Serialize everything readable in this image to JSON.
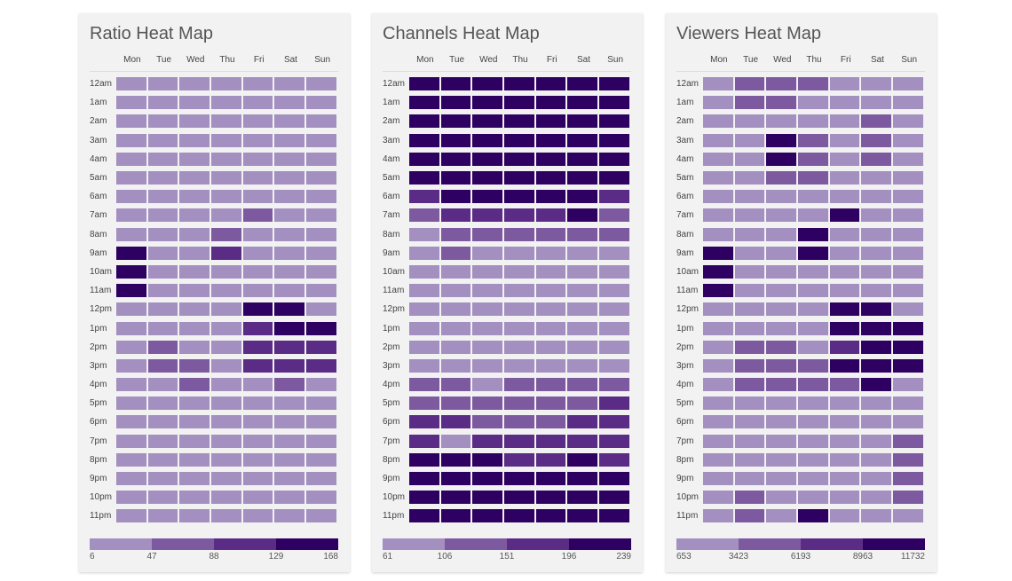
{
  "days": [
    "Mon",
    "Tue",
    "Wed",
    "Thu",
    "Fri",
    "Sat",
    "Sun"
  ],
  "hours": [
    "12am",
    "1am",
    "2am",
    "3am",
    "4am",
    "5am",
    "6am",
    "7am",
    "8am",
    "9am",
    "10am",
    "11am",
    "12pm",
    "1pm",
    "2pm",
    "3pm",
    "4pm",
    "5pm",
    "6pm",
    "7pm",
    "8pm",
    "9pm",
    "10pm",
    "11pm"
  ],
  "colors": [
    "#a38fc0",
    "#7d5a9f",
    "#5a2c86",
    "#2e0062"
  ],
  "chart_data": [
    {
      "type": "heatmap",
      "title": "Ratio Heat Map",
      "scale": [
        "6",
        "47",
        "88",
        "129",
        "168"
      ],
      "levels": [
        [
          0,
          0,
          0,
          0,
          0,
          0,
          0
        ],
        [
          0,
          0,
          0,
          0,
          0,
          0,
          0
        ],
        [
          0,
          0,
          0,
          0,
          0,
          0,
          0
        ],
        [
          0,
          0,
          0,
          0,
          0,
          0,
          0
        ],
        [
          0,
          0,
          0,
          0,
          0,
          0,
          0
        ],
        [
          0,
          0,
          0,
          0,
          0,
          0,
          0
        ],
        [
          0,
          0,
          0,
          0,
          0,
          0,
          0
        ],
        [
          0,
          0,
          0,
          0,
          1,
          0,
          0
        ],
        [
          0,
          0,
          0,
          1,
          0,
          0,
          0
        ],
        [
          3,
          0,
          0,
          2,
          0,
          0,
          0
        ],
        [
          3,
          0,
          0,
          0,
          0,
          0,
          0
        ],
        [
          3,
          0,
          0,
          0,
          0,
          0,
          0
        ],
        [
          0,
          0,
          0,
          0,
          3,
          3,
          0
        ],
        [
          0,
          0,
          0,
          0,
          2,
          3,
          3
        ],
        [
          0,
          1,
          0,
          0,
          2,
          2,
          2
        ],
        [
          0,
          1,
          1,
          0,
          2,
          2,
          2
        ],
        [
          0,
          0,
          1,
          0,
          0,
          1,
          0
        ],
        [
          0,
          0,
          0,
          0,
          0,
          0,
          0
        ],
        [
          0,
          0,
          0,
          0,
          0,
          0,
          0
        ],
        [
          0,
          0,
          0,
          0,
          0,
          0,
          0
        ],
        [
          0,
          0,
          0,
          0,
          0,
          0,
          0
        ],
        [
          0,
          0,
          0,
          0,
          0,
          0,
          0
        ],
        [
          0,
          0,
          0,
          0,
          0,
          0,
          0
        ],
        [
          0,
          0,
          0,
          0,
          0,
          0,
          0
        ]
      ]
    },
    {
      "type": "heatmap",
      "title": "Channels Heat Map",
      "scale": [
        "61",
        "106",
        "151",
        "196",
        "239"
      ],
      "levels": [
        [
          3,
          3,
          3,
          3,
          3,
          3,
          3
        ],
        [
          3,
          3,
          3,
          3,
          3,
          3,
          3
        ],
        [
          3,
          3,
          3,
          3,
          3,
          3,
          3
        ],
        [
          3,
          3,
          3,
          3,
          3,
          3,
          3
        ],
        [
          3,
          3,
          3,
          3,
          3,
          3,
          3
        ],
        [
          3,
          3,
          3,
          3,
          3,
          3,
          3
        ],
        [
          2,
          3,
          3,
          3,
          3,
          3,
          2
        ],
        [
          1,
          2,
          2,
          2,
          2,
          3,
          1
        ],
        [
          0,
          1,
          1,
          1,
          1,
          1,
          1
        ],
        [
          0,
          1,
          0,
          0,
          0,
          0,
          0
        ],
        [
          0,
          0,
          0,
          0,
          0,
          0,
          0
        ],
        [
          0,
          0,
          0,
          0,
          0,
          0,
          0
        ],
        [
          0,
          0,
          0,
          0,
          0,
          0,
          0
        ],
        [
          0,
          0,
          0,
          0,
          0,
          0,
          0
        ],
        [
          0,
          0,
          0,
          0,
          0,
          0,
          0
        ],
        [
          0,
          0,
          0,
          0,
          0,
          0,
          0
        ],
        [
          1,
          1,
          0,
          1,
          1,
          1,
          1
        ],
        [
          1,
          1,
          1,
          1,
          1,
          1,
          2
        ],
        [
          2,
          2,
          1,
          1,
          1,
          2,
          2
        ],
        [
          2,
          0,
          2,
          2,
          2,
          2,
          2
        ],
        [
          3,
          3,
          3,
          2,
          2,
          3,
          2
        ],
        [
          3,
          3,
          3,
          3,
          3,
          3,
          3
        ],
        [
          3,
          3,
          3,
          3,
          3,
          3,
          3
        ],
        [
          3,
          3,
          3,
          3,
          3,
          3,
          3
        ]
      ]
    },
    {
      "type": "heatmap",
      "title": "Viewers Heat Map",
      "scale": [
        "653",
        "3423",
        "6193",
        "8963",
        "11732"
      ],
      "levels": [
        [
          0,
          1,
          1,
          1,
          0,
          0,
          0
        ],
        [
          0,
          1,
          1,
          0,
          0,
          0,
          0
        ],
        [
          0,
          0,
          0,
          0,
          0,
          1,
          0
        ],
        [
          0,
          0,
          3,
          1,
          0,
          1,
          0
        ],
        [
          0,
          0,
          3,
          1,
          0,
          1,
          0
        ],
        [
          0,
          0,
          1,
          1,
          0,
          0,
          0
        ],
        [
          0,
          0,
          0,
          0,
          0,
          0,
          0
        ],
        [
          0,
          0,
          0,
          0,
          3,
          0,
          0
        ],
        [
          0,
          0,
          0,
          3,
          0,
          0,
          0
        ],
        [
          3,
          0,
          0,
          3,
          0,
          0,
          0
        ],
        [
          3,
          0,
          0,
          0,
          0,
          0,
          0
        ],
        [
          3,
          0,
          0,
          0,
          0,
          0,
          0
        ],
        [
          0,
          0,
          0,
          0,
          3,
          3,
          0
        ],
        [
          0,
          0,
          0,
          0,
          3,
          3,
          3
        ],
        [
          0,
          1,
          1,
          0,
          2,
          3,
          3
        ],
        [
          0,
          1,
          1,
          1,
          3,
          3,
          3
        ],
        [
          0,
          1,
          1,
          1,
          1,
          3,
          0
        ],
        [
          0,
          0,
          0,
          0,
          0,
          0,
          0
        ],
        [
          0,
          0,
          0,
          0,
          0,
          0,
          0
        ],
        [
          0,
          0,
          0,
          0,
          0,
          0,
          1
        ],
        [
          0,
          0,
          0,
          0,
          0,
          0,
          1
        ],
        [
          0,
          0,
          0,
          0,
          0,
          0,
          1
        ],
        [
          0,
          1,
          0,
          0,
          0,
          0,
          1
        ],
        [
          0,
          1,
          0,
          3,
          0,
          0,
          0
        ]
      ]
    }
  ]
}
